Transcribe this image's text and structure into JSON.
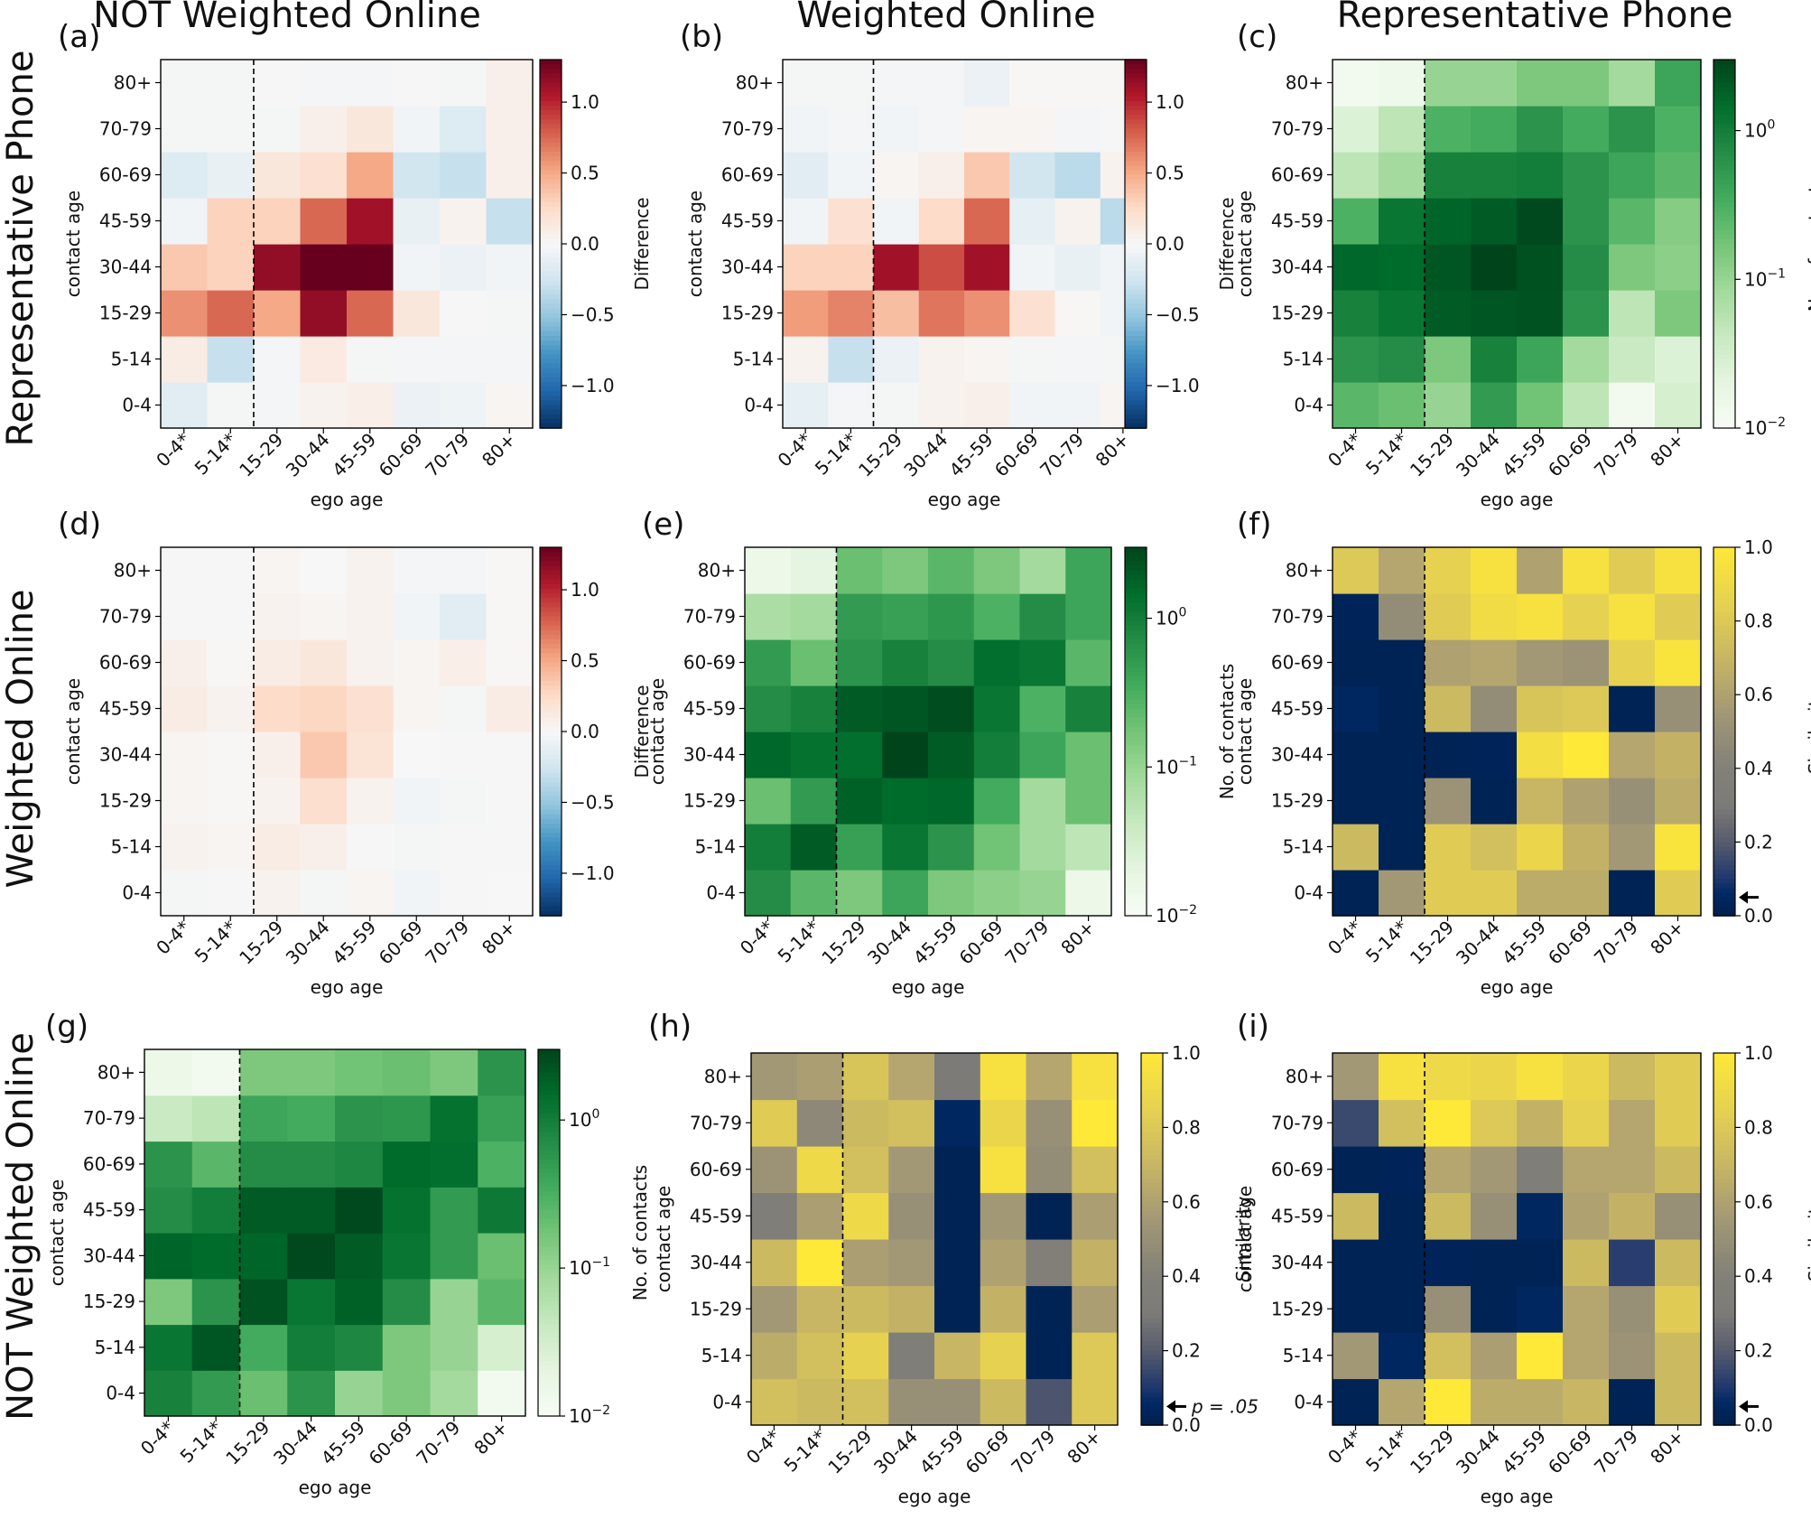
{
  "column_titles": [
    "NOT Weighted Online",
    "Weighted Online",
    "Representative Phone"
  ],
  "row_titles": [
    "Representative Phone",
    "Weighted Online",
    "NOT Weighted Online"
  ],
  "colors": {
    "red": "#67001f",
    "blue": "#053061",
    "green_dark": "#00441b",
    "green_light": "#f7fcf5",
    "yellow": "#fee838",
    "navy": "#00204c",
    "gray": "#7c7b78"
  },
  "chart_data": [
    {
      "panel": "(a)",
      "type": "heatmap",
      "scale": "diverging",
      "xlabel": "ego age",
      "ylabel": "contact age",
      "colorbar_label": "Difference",
      "x_categories": [
        "0-4*",
        "5-14*",
        "15-29",
        "30-44",
        "45-59",
        "60-69",
        "70-79",
        "80+"
      ],
      "y_categories": [
        "0-4",
        "5-14",
        "15-29",
        "30-44",
        "45-59",
        "60-69",
        "70-79",
        "80+"
      ],
      "colorbar_ticks": [
        "1.0",
        "0.5",
        "0.0",
        "−0.5",
        "−1.0"
      ],
      "vmin": -1.3,
      "vmax": 1.3,
      "values": [
        [
          -0.15,
          -0.02,
          -0.03,
          0.05,
          0.08,
          -0.08,
          -0.06,
          0.03
        ],
        [
          0.1,
          -0.3,
          -0.03,
          0.12,
          -0.02,
          -0.03,
          -0.03,
          -0.03
        ],
        [
          0.6,
          0.75,
          0.5,
          1.15,
          0.75,
          0.15,
          -0.01,
          -0.02
        ],
        [
          0.35,
          0.3,
          1.15,
          1.3,
          1.35,
          -0.05,
          -0.08,
          -0.04
        ],
        [
          -0.05,
          0.3,
          0.3,
          0.75,
          1.1,
          -0.1,
          0.05,
          -0.3
        ],
        [
          -0.18,
          -0.1,
          0.15,
          0.2,
          0.5,
          -0.25,
          -0.3,
          0.07
        ],
        [
          -0.02,
          -0.02,
          -0.02,
          0.07,
          0.15,
          -0.05,
          -0.18,
          0.07
        ],
        [
          -0.02,
          -0.02,
          -0.01,
          -0.03,
          -0.03,
          -0.01,
          -0.02,
          0.07
        ]
      ]
    },
    {
      "panel": "(b)",
      "type": "heatmap",
      "scale": "diverging",
      "xlabel": "ego age",
      "ylabel": "contact age",
      "colorbar_label": "Difference",
      "x_categories": [
        "0-4*",
        "5-14*",
        "15-29",
        "30-44",
        "45-59",
        "60-69",
        "70-79",
        "80+"
      ],
      "y_categories": [
        "0-4",
        "5-14",
        "15-29",
        "30-44",
        "45-59",
        "60-69",
        "70-79",
        "80+"
      ],
      "colorbar_ticks": [
        "1.0",
        "0.5",
        "0.0",
        "−0.5",
        "−1.0"
      ],
      "vmin": -1.3,
      "vmax": 1.3,
      "values": [
        [
          -0.12,
          -0.03,
          -0.02,
          0.05,
          0.07,
          -0.05,
          -0.05,
          0.03
        ],
        [
          0.05,
          -0.3,
          -0.08,
          0.05,
          0.03,
          -0.02,
          -0.03,
          -0.02
        ],
        [
          0.55,
          0.65,
          0.4,
          0.7,
          0.6,
          0.2,
          0.01,
          -0.05
        ],
        [
          0.3,
          0.3,
          1.1,
          0.85,
          1.1,
          -0.05,
          -0.1,
          -0.05
        ],
        [
          -0.05,
          0.2,
          -0.05,
          0.25,
          0.75,
          -0.12,
          0.05,
          -0.35
        ],
        [
          -0.15,
          -0.05,
          0.03,
          0.07,
          0.35,
          -0.25,
          -0.35,
          0.05
        ],
        [
          -0.05,
          -0.03,
          -0.05,
          -0.03,
          0.03,
          0.03,
          -0.03,
          -0.01
        ],
        [
          -0.02,
          -0.02,
          -0.03,
          -0.03,
          -0.08,
          0.01,
          0.01,
          0.01
        ]
      ]
    },
    {
      "panel": "(c)",
      "type": "heatmap",
      "scale": "log_green",
      "xlabel": "ego age",
      "ylabel": "contact age",
      "colorbar_label": "No. of contacts",
      "x_categories": [
        "0-4*",
        "5-14*",
        "15-29",
        "30-44",
        "45-59",
        "60-69",
        "70-79",
        "80+"
      ],
      "y_categories": [
        "0-4",
        "5-14",
        "15-29",
        "30-44",
        "45-59",
        "60-69",
        "70-79",
        "80+"
      ],
      "colorbar_ticks": [
        "10^0",
        "10^-1",
        "10^-2"
      ],
      "vmin": 0.01,
      "vmax": 3.0,
      "values": [
        [
          0.25,
          0.2,
          0.1,
          0.5,
          0.18,
          0.05,
          0.012,
          0.03
        ],
        [
          0.6,
          0.7,
          0.15,
          0.9,
          0.4,
          0.08,
          0.04,
          0.025
        ],
        [
          0.9,
          1.2,
          2.0,
          2.2,
          2.3,
          0.6,
          0.05,
          0.15
        ],
        [
          1.6,
          1.5,
          2.2,
          3.0,
          2.4,
          0.7,
          0.15,
          0.12
        ],
        [
          0.3,
          1.2,
          1.7,
          2.0,
          2.8,
          0.6,
          0.25,
          0.13
        ],
        [
          0.05,
          0.08,
          0.9,
          0.9,
          1.0,
          0.6,
          0.4,
          0.25
        ],
        [
          0.025,
          0.05,
          0.3,
          0.35,
          0.6,
          0.35,
          0.6,
          0.3
        ],
        [
          0.012,
          0.014,
          0.1,
          0.1,
          0.15,
          0.15,
          0.08,
          0.4
        ]
      ]
    },
    {
      "panel": "(d)",
      "type": "heatmap",
      "scale": "diverging",
      "xlabel": "ego age",
      "ylabel": "contact age",
      "colorbar_label": "Difference",
      "x_categories": [
        "0-4*",
        "5-14*",
        "15-29",
        "30-44",
        "45-59",
        "60-69",
        "70-79",
        "80+"
      ],
      "y_categories": [
        "0-4",
        "5-14",
        "15-29",
        "30-44",
        "45-59",
        "60-69",
        "70-79",
        "80+"
      ],
      "colorbar_ticks": [
        "1.0",
        "0.5",
        "0.0",
        "−0.5",
        "−1.0"
      ],
      "vmin": -1.3,
      "vmax": 1.3,
      "values": [
        [
          -0.02,
          -0.01,
          0.05,
          -0.02,
          0.03,
          -0.05,
          -0.01,
          0.0
        ],
        [
          0.05,
          0.03,
          0.1,
          0.07,
          -0.01,
          -0.02,
          -0.01,
          -0.01
        ],
        [
          0.03,
          0.01,
          0.05,
          0.22,
          0.05,
          -0.05,
          -0.02,
          -0.01
        ],
        [
          0.03,
          0.01,
          0.07,
          0.35,
          0.18,
          0.0,
          -0.01,
          -0.01
        ],
        [
          0.1,
          0.05,
          0.25,
          0.28,
          0.2,
          0.03,
          -0.02,
          0.1
        ],
        [
          0.07,
          0.01,
          0.1,
          0.15,
          0.05,
          0.03,
          0.08,
          0.01
        ],
        [
          -0.01,
          -0.01,
          0.05,
          0.03,
          0.05,
          -0.05,
          -0.15,
          0.01
        ],
        [
          -0.01,
          -0.01,
          0.03,
          0.0,
          0.05,
          -0.03,
          -0.03,
          0.01
        ]
      ]
    },
    {
      "panel": "(e)",
      "type": "heatmap",
      "scale": "log_green",
      "xlabel": "ego age",
      "ylabel": "contact age",
      "colorbar_label": "No. of contacts",
      "x_categories": [
        "0-4*",
        "5-14*",
        "15-29",
        "30-44",
        "45-59",
        "60-69",
        "70-79",
        "80+"
      ],
      "y_categories": [
        "0-4",
        "5-14",
        "15-29",
        "30-44",
        "45-59",
        "60-69",
        "70-79",
        "80+"
      ],
      "colorbar_ticks": [
        "10^0",
        "10^-1",
        "10^-2"
      ],
      "vmin": 0.01,
      "vmax": 3.0,
      "values": [
        [
          0.7,
          0.25,
          0.15,
          0.4,
          0.15,
          0.12,
          0.1,
          0.015
        ],
        [
          1.0,
          2.0,
          0.45,
          1.2,
          0.6,
          0.18,
          0.08,
          0.05
        ],
        [
          0.2,
          0.5,
          1.8,
          1.5,
          1.6,
          0.35,
          0.08,
          0.2
        ],
        [
          1.6,
          1.3,
          1.4,
          3.0,
          2.0,
          1.0,
          0.4,
          0.2
        ],
        [
          0.7,
          0.9,
          2.0,
          2.2,
          2.5,
          1.2,
          0.3,
          0.9
        ],
        [
          0.5,
          0.2,
          0.6,
          0.9,
          0.7,
          1.4,
          1.2,
          0.25
        ],
        [
          0.07,
          0.08,
          0.5,
          0.45,
          0.55,
          0.3,
          0.7,
          0.4
        ],
        [
          0.015,
          0.02,
          0.2,
          0.15,
          0.25,
          0.15,
          0.08,
          0.4
        ]
      ]
    },
    {
      "panel": "(f)",
      "type": "heatmap",
      "scale": "similarity",
      "xlabel": "ego age",
      "ylabel": "contact age",
      "colorbar_label": "Similarity",
      "x_categories": [
        "0-4*",
        "5-14*",
        "15-29",
        "30-44",
        "45-59",
        "60-69",
        "70-79",
        "80+"
      ],
      "y_categories": [
        "0-4",
        "5-14",
        "15-29",
        "30-44",
        "45-59",
        "60-69",
        "70-79",
        "80+"
      ],
      "colorbar_ticks": [
        "1.0",
        "0.8",
        "0.6",
        "0.4",
        "0.2",
        "0.0"
      ],
      "vmin": 0.0,
      "vmax": 1.0,
      "pvalue_marker": 0.05,
      "pvalue_label": "",
      "values": [
        [
          0.02,
          0.55,
          0.82,
          0.82,
          0.65,
          0.65,
          0.02,
          0.82
        ],
        [
          0.72,
          0.02,
          0.82,
          0.75,
          0.88,
          0.68,
          0.55,
          0.97
        ],
        [
          0.02,
          0.02,
          0.52,
          0.02,
          0.7,
          0.6,
          0.5,
          0.65
        ],
        [
          0.02,
          0.02,
          0.02,
          0.03,
          0.93,
          1.0,
          0.62,
          0.68
        ],
        [
          0.05,
          0.02,
          0.72,
          0.48,
          0.78,
          0.8,
          0.02,
          0.5
        ],
        [
          0.02,
          0.02,
          0.6,
          0.62,
          0.55,
          0.52,
          0.85,
          0.97
        ],
        [
          0.03,
          0.48,
          0.82,
          0.92,
          0.95,
          0.85,
          0.95,
          0.82
        ],
        [
          0.8,
          0.62,
          0.85,
          0.95,
          0.6,
          0.95,
          0.82,
          0.95
        ]
      ]
    },
    {
      "panel": "(g)",
      "type": "heatmap",
      "scale": "log_green",
      "xlabel": "ego age",
      "ylabel": "contact age",
      "colorbar_label": "No. of contacts",
      "x_categories": [
        "0-4*",
        "5-14*",
        "15-29",
        "30-44",
        "45-59",
        "60-69",
        "70-79",
        "80+"
      ],
      "y_categories": [
        "0-4",
        "5-14",
        "15-29",
        "30-44",
        "45-59",
        "60-69",
        "70-79",
        "80+"
      ],
      "colorbar_ticks": [
        "10^0",
        "10^-1",
        "10^-2"
      ],
      "vmin": 0.01,
      "vmax": 3.0,
      "values": [
        [
          0.9,
          0.5,
          0.2,
          0.6,
          0.1,
          0.15,
          0.08,
          0.012
        ],
        [
          1.2,
          2.2,
          0.35,
          1.0,
          0.8,
          0.15,
          0.1,
          0.03
        ],
        [
          0.15,
          0.6,
          2.3,
          1.2,
          1.8,
          0.7,
          0.1,
          0.25
        ],
        [
          1.7,
          1.5,
          1.7,
          2.8,
          2.0,
          1.2,
          0.5,
          0.2
        ],
        [
          0.7,
          1.0,
          2.0,
          2.0,
          2.8,
          1.3,
          0.5,
          1.1
        ],
        [
          0.6,
          0.25,
          0.7,
          0.7,
          0.8,
          1.5,
          1.4,
          0.3
        ],
        [
          0.04,
          0.05,
          0.4,
          0.35,
          0.6,
          0.55,
          1.3,
          0.45
        ],
        [
          0.015,
          0.012,
          0.15,
          0.15,
          0.18,
          0.2,
          0.15,
          0.6
        ]
      ]
    },
    {
      "panel": "(h)",
      "type": "heatmap",
      "scale": "similarity",
      "xlabel": "ego age",
      "ylabel": "contact age",
      "colorbar_label": "Similarity",
      "x_categories": [
        "0-4*",
        "5-14*",
        "15-29",
        "30-44",
        "45-59",
        "60-69",
        "70-79",
        "80+"
      ],
      "y_categories": [
        "0-4",
        "5-14",
        "15-29",
        "30-44",
        "45-59",
        "60-69",
        "70-79",
        "80+"
      ],
      "colorbar_ticks": [
        "1.0",
        "0.8",
        "0.6",
        "0.4",
        "0.2",
        "0.0"
      ],
      "vmin": 0.0,
      "vmax": 1.0,
      "pvalue_marker": 0.05,
      "pvalue_label": "p = .05",
      "values": [
        [
          0.75,
          0.72,
          0.75,
          0.5,
          0.5,
          0.72,
          0.18,
          0.8
        ],
        [
          0.65,
          0.75,
          0.85,
          0.35,
          0.7,
          0.85,
          0.02,
          0.8
        ],
        [
          0.55,
          0.7,
          0.72,
          0.68,
          0.02,
          0.68,
          0.02,
          0.58
        ],
        [
          0.72,
          1.0,
          0.58,
          0.55,
          0.02,
          0.6,
          0.38,
          0.68
        ],
        [
          0.35,
          0.58,
          0.9,
          0.5,
          0.02,
          0.55,
          0.02,
          0.58
        ],
        [
          0.52,
          0.9,
          0.75,
          0.55,
          0.02,
          0.95,
          0.48,
          0.75
        ],
        [
          0.82,
          0.45,
          0.72,
          0.75,
          0.05,
          0.88,
          0.5,
          1.0
        ],
        [
          0.55,
          0.58,
          0.78,
          0.62,
          0.3,
          0.95,
          0.62,
          0.95
        ]
      ]
    },
    {
      "panel": "(i)",
      "type": "heatmap",
      "scale": "similarity",
      "xlabel": "ego age",
      "ylabel": "contact age",
      "colorbar_label": "Similarity",
      "x_categories": [
        "0-4*",
        "5-14*",
        "15-29",
        "30-44",
        "45-59",
        "60-69",
        "70-79",
        "80+"
      ],
      "y_categories": [
        "0-4",
        "5-14",
        "15-29",
        "30-44",
        "45-59",
        "60-69",
        "70-79",
        "80+"
      ],
      "colorbar_ticks": [
        "1.0",
        "0.8",
        "0.6",
        "0.4",
        "0.2",
        "0.0"
      ],
      "vmin": 0.0,
      "vmax": 1.0,
      "pvalue_marker": 0.05,
      "pvalue_label": "",
      "values": [
        [
          0.02,
          0.62,
          1.0,
          0.65,
          0.65,
          0.7,
          0.02,
          0.72
        ],
        [
          0.55,
          0.05,
          0.75,
          0.58,
          1.0,
          0.62,
          0.52,
          0.72
        ],
        [
          0.02,
          0.02,
          0.5,
          0.02,
          0.05,
          0.62,
          0.5,
          0.82
        ],
        [
          0.02,
          0.02,
          0.03,
          0.02,
          0.02,
          0.72,
          0.12,
          0.72
        ],
        [
          0.72,
          0.02,
          0.72,
          0.5,
          0.05,
          0.6,
          0.68,
          0.5
        ],
        [
          0.02,
          0.03,
          0.62,
          0.55,
          0.35,
          0.62,
          0.62,
          0.72
        ],
        [
          0.15,
          0.75,
          1.0,
          0.8,
          0.68,
          0.85,
          0.62,
          0.82
        ],
        [
          0.55,
          0.95,
          0.9,
          0.88,
          0.95,
          0.88,
          0.72,
          0.82
        ]
      ]
    }
  ]
}
